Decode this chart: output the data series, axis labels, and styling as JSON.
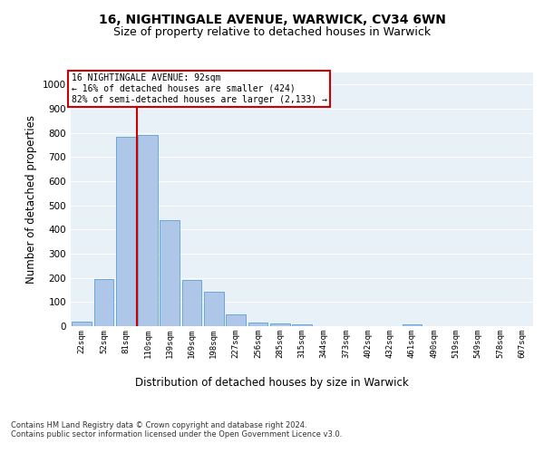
{
  "title1": "16, NIGHTINGALE AVENUE, WARWICK, CV34 6WN",
  "title2": "Size of property relative to detached houses in Warwick",
  "xlabel": "Distribution of detached houses by size in Warwick",
  "ylabel": "Number of detached properties",
  "categories": [
    "22sqm",
    "52sqm",
    "81sqm",
    "110sqm",
    "139sqm",
    "169sqm",
    "198sqm",
    "227sqm",
    "256sqm",
    "285sqm",
    "315sqm",
    "344sqm",
    "373sqm",
    "402sqm",
    "432sqm",
    "461sqm",
    "490sqm",
    "519sqm",
    "549sqm",
    "578sqm",
    "607sqm"
  ],
  "values": [
    18,
    195,
    783,
    790,
    438,
    190,
    143,
    48,
    14,
    12,
    9,
    0,
    0,
    0,
    0,
    8,
    0,
    0,
    0,
    0,
    0
  ],
  "bar_color": "#aec6e8",
  "bar_edge_color": "#5a9fd4",
  "red_line_x": 2.5,
  "annotation_text": "16 NIGHTINGALE AVENUE: 92sqm\n← 16% of detached houses are smaller (424)\n82% of semi-detached houses are larger (2,133) →",
  "annotation_box_color": "#ffffff",
  "annotation_border_color": "#cc0000",
  "footer_text": "Contains HM Land Registry data © Crown copyright and database right 2024.\nContains public sector information licensed under the Open Government Licence v3.0.",
  "ylim": [
    0,
    1050
  ],
  "yticks": [
    0,
    100,
    200,
    300,
    400,
    500,
    600,
    700,
    800,
    900,
    1000
  ],
  "bg_color": "#e8f0f8",
  "fig_bg_color": "#ffffff",
  "title1_fontsize": 10,
  "title2_fontsize": 9,
  "xlabel_fontsize": 8.5,
  "ylabel_fontsize": 8.5
}
